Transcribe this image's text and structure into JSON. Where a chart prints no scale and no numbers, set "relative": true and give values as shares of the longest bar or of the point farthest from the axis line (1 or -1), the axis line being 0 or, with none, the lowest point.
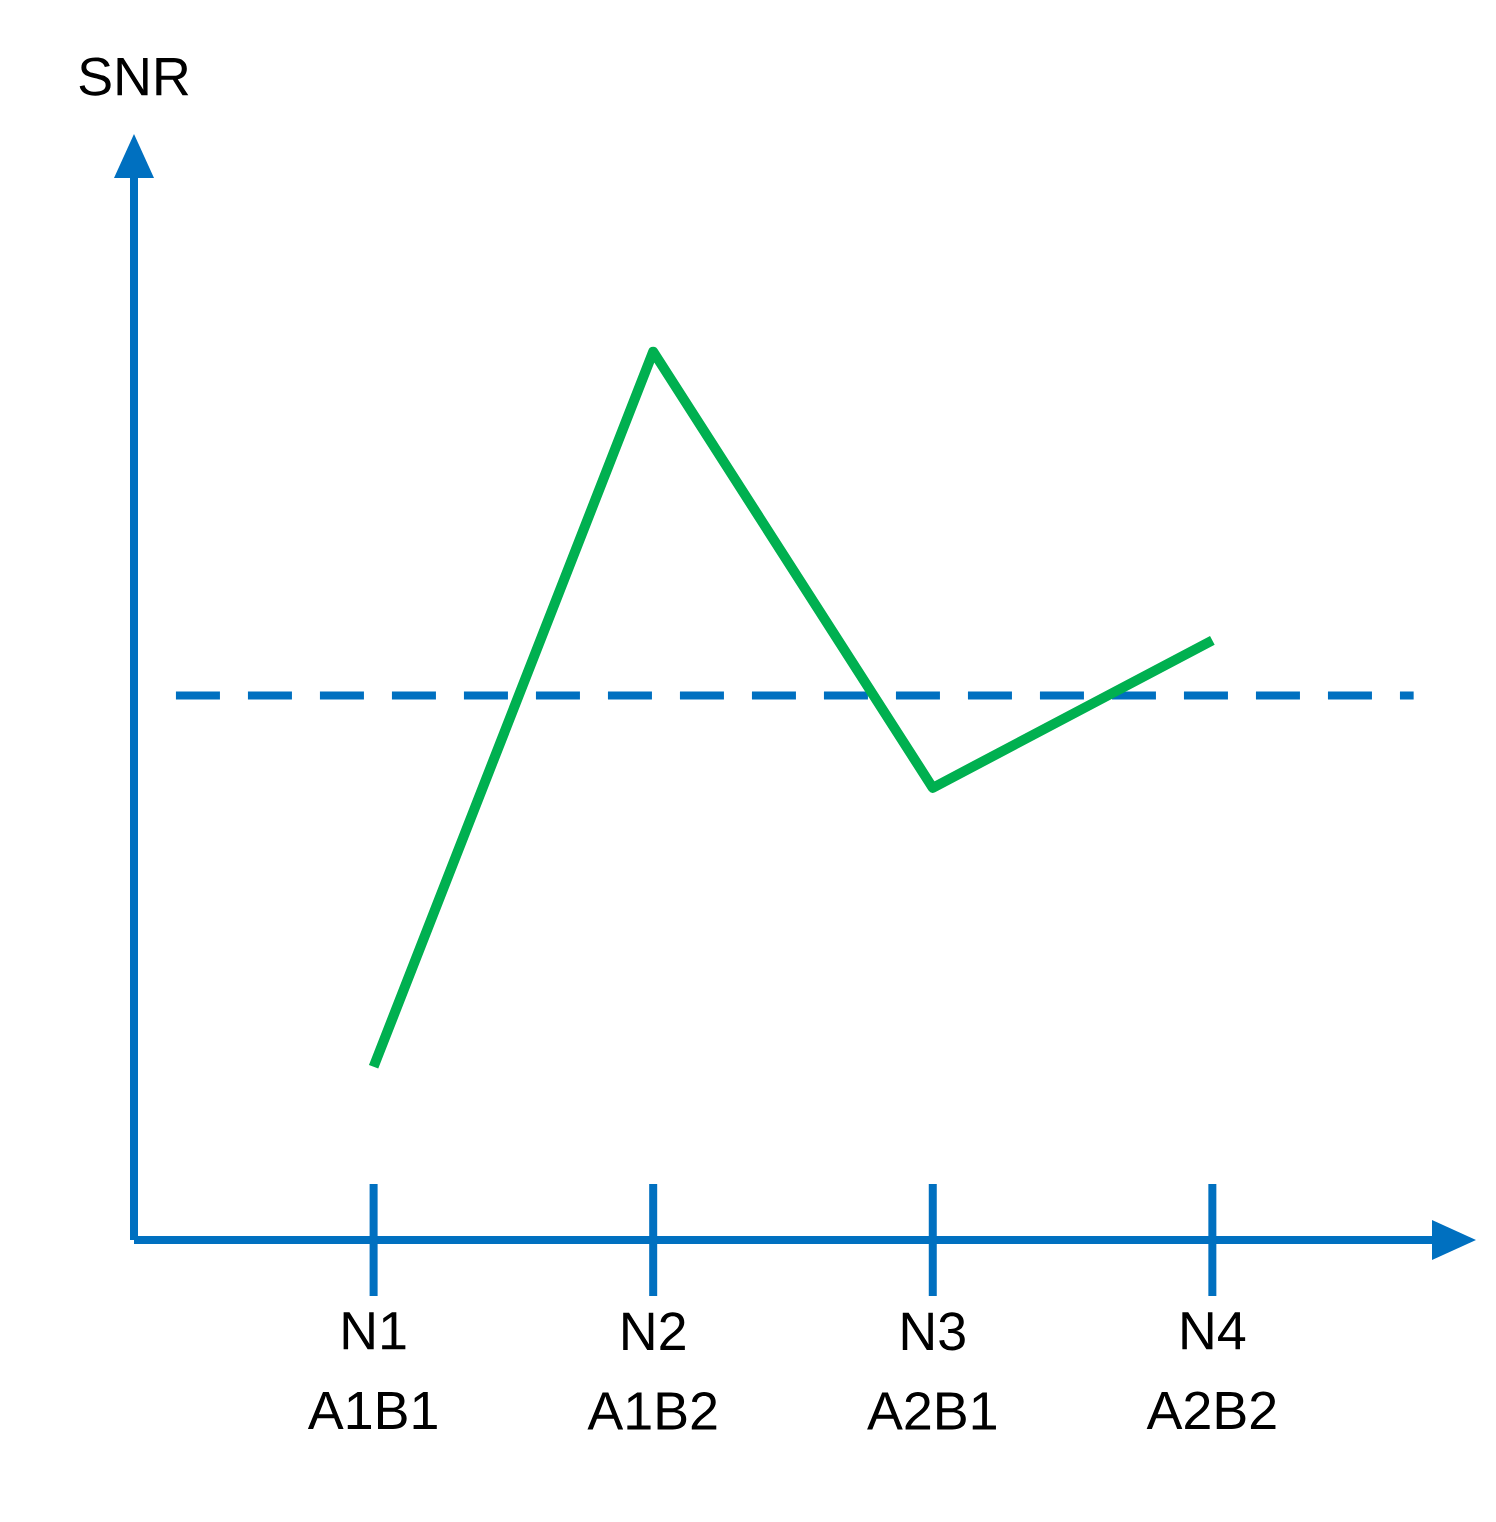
{
  "chart_data": {
    "type": "line",
    "ylabel": "SNR",
    "categories": [
      "N1 A1B1",
      "N2 A1B2",
      "N3 A2B1",
      "N4 A2B2"
    ],
    "relative": true,
    "series": [
      {
        "color": "#00b050",
        "values": [
          0.195,
          1,
          0.509,
          0.675
        ]
      }
    ],
    "ref_lines": [
      {
        "axis": "y",
        "value": 0.613,
        "color": "#0070c0",
        "line_style": "dashed"
      }
    ]
  }
}
